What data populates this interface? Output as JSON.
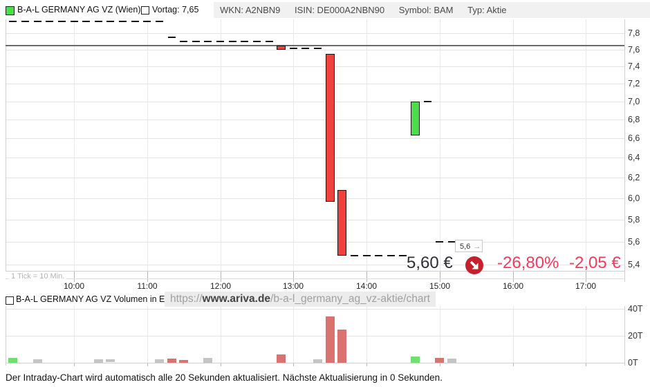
{
  "header": {
    "series_label": "B-A-L GERMANY AG VZ (Wien)",
    "vortag_label": "Vortag: 7,65",
    "meta": [
      "WKN: A2NBN9",
      "ISIN: DE000A2NBN90",
      "Symbol: BAM",
      "Typ: Aktie"
    ]
  },
  "price_panel": {
    "tick_note": "1 Tick = 10 Min.",
    "marker_label": "5,6",
    "marker_arrow": "→",
    "current_price": "5,60 €",
    "change_percent": "-26,80%",
    "change_absolute": "-2,05 €"
  },
  "volume_panel": {
    "legend": "B-A-L GERMANY AG VZ Volumen in Euro",
    "watermark_prefix": "https://",
    "watermark_domain": "www.ariva.de",
    "watermark_path": "/b-a-l_germany_ag_vz-aktie/chart"
  },
  "footer": {
    "status": "Der Intraday-Chart wird automatisch alle 20 Sekunden aktualisiert. Nächste Aktualisierung in 0 Sekunden."
  },
  "colors": {
    "candle_up": "#4ddd4a",
    "candle_down": "#ef413e",
    "candle_border": "#151515",
    "volume_up": "#6fdf6f",
    "volume_down": "#d9736f",
    "volume_neutral": "#c4c4c4",
    "change_text": "#f43b5b",
    "price_text": "#2f2f38",
    "trend_icon_bg": "#c6202c",
    "previous_close_line": "#6b6b6b",
    "grid": "#e4e4e4",
    "axis_border": "#cfcfcf"
  },
  "chart_data": [
    {
      "type": "candlestick",
      "title": "B-A-L GERMANY AG VZ (Wien) Intraday",
      "interval": "1 Tick = 10 Min.",
      "previous_close": 7.65,
      "last_price": 5.6,
      "change_percent": -26.8,
      "change_absolute": -2.05,
      "y_axis": {
        "scale": "log",
        "tick_labels": [
          "7,8",
          "7,6",
          "7,4",
          "7,2",
          "7,0",
          "6,8",
          "6,6",
          "6,4",
          "6,2",
          "6,0",
          "5,8",
          "5,6",
          "5,4"
        ],
        "tick_values": [
          7.8,
          7.6,
          7.4,
          7.2,
          7.0,
          6.8,
          6.6,
          6.4,
          6.2,
          6.0,
          5.8,
          5.6,
          5.4
        ]
      },
      "x_axis": {
        "tick_labels": [
          "10:00",
          "11:00",
          "12:00",
          "13:00",
          "14:00",
          "15:00",
          "16:00",
          "17:00"
        ]
      },
      "ticks": [
        {
          "t": "09:10",
          "o": 7.95,
          "c": 7.95
        },
        {
          "t": "09:20",
          "o": 7.95,
          "c": 7.95
        },
        {
          "t": "09:30",
          "o": 7.95,
          "c": 7.95
        },
        {
          "t": "09:40",
          "o": 7.95,
          "c": 7.95
        },
        {
          "t": "09:50",
          "o": 7.95,
          "c": 7.95
        },
        {
          "t": "10:00",
          "o": 7.95,
          "c": 7.95
        },
        {
          "t": "10:10",
          "o": 7.95,
          "c": 7.95
        },
        {
          "t": "10:20",
          "o": 7.95,
          "c": 7.95
        },
        {
          "t": "10:30",
          "o": 7.95,
          "c": 7.95
        },
        {
          "t": "10:40",
          "o": 7.95,
          "c": 7.95
        },
        {
          "t": "10:50",
          "o": 7.95,
          "c": 7.95
        },
        {
          "t": "11:00",
          "o": 7.95,
          "c": 7.95
        },
        {
          "t": "11:10",
          "o": 7.95,
          "c": 7.95
        },
        {
          "t": "11:20",
          "o": 7.75,
          "c": 7.75
        },
        {
          "t": "11:30",
          "o": 7.7,
          "c": 7.7
        },
        {
          "t": "11:40",
          "o": 7.7,
          "c": 7.7
        },
        {
          "t": "11:50",
          "o": 7.7,
          "c": 7.7
        },
        {
          "t": "12:00",
          "o": 7.7,
          "c": 7.7
        },
        {
          "t": "12:10",
          "o": 7.7,
          "c": 7.7
        },
        {
          "t": "12:20",
          "o": 7.7,
          "c": 7.7
        },
        {
          "t": "12:30",
          "o": 7.7,
          "c": 7.7
        },
        {
          "t": "12:40",
          "o": 7.7,
          "c": 7.7
        },
        {
          "t": "12:50",
          "o": 7.65,
          "c": 7.6
        },
        {
          "t": "13:00",
          "o": 7.61,
          "c": 7.61
        },
        {
          "t": "13:10",
          "o": 7.61,
          "c": 7.61
        },
        {
          "t": "13:20",
          "o": 7.61,
          "c": 7.61
        },
        {
          "t": "13:30",
          "o": 7.55,
          "c": 5.97
        },
        {
          "t": "13:40",
          "o": 6.08,
          "c": 5.48
        },
        {
          "t": "13:50",
          "o": 5.48,
          "c": 5.48
        },
        {
          "t": "14:00",
          "o": 5.48,
          "c": 5.48
        },
        {
          "t": "14:10",
          "o": 5.48,
          "c": 5.48
        },
        {
          "t": "14:20",
          "o": 5.48,
          "c": 5.48
        },
        {
          "t": "14:30",
          "o": 5.48,
          "c": 5.48
        },
        {
          "t": "14:40",
          "o": 6.63,
          "c": 7.0
        },
        {
          "t": "14:50",
          "o": 7.0,
          "c": 7.0
        },
        {
          "t": "15:00",
          "o": 5.6,
          "c": 5.6
        },
        {
          "t": "15:10",
          "o": 5.6,
          "c": 5.6
        }
      ]
    },
    {
      "type": "bar",
      "title": "B-A-L GERMANY AG VZ Volumen in Euro",
      "y_axis": {
        "tick_labels": [
          "40T",
          "20T",
          "0T"
        ],
        "tick_values": [
          40,
          20,
          0
        ],
        "unit": "T"
      },
      "bars": [
        {
          "t": "09:10",
          "v": 3.5,
          "dir": "up"
        },
        {
          "t": "09:30",
          "v": 2.5,
          "dir": "neutral"
        },
        {
          "t": "10:20",
          "v": 2.5,
          "dir": "neutral"
        },
        {
          "t": "10:30",
          "v": 2.2,
          "dir": "neutral"
        },
        {
          "t": "11:10",
          "v": 2.5,
          "dir": "neutral"
        },
        {
          "t": "11:20",
          "v": 3.0,
          "dir": "down"
        },
        {
          "t": "11:30",
          "v": 2.0,
          "dir": "down"
        },
        {
          "t": "11:50",
          "v": 3.5,
          "dir": "neutral"
        },
        {
          "t": "12:50",
          "v": 6.0,
          "dir": "down"
        },
        {
          "t": "13:20",
          "v": 2.5,
          "dir": "neutral"
        },
        {
          "t": "13:30",
          "v": 34.5,
          "dir": "down"
        },
        {
          "t": "13:40",
          "v": 24.5,
          "dir": "down"
        },
        {
          "t": "14:40",
          "v": 4.5,
          "dir": "up"
        },
        {
          "t": "15:00",
          "v": 3.5,
          "dir": "down"
        },
        {
          "t": "15:10",
          "v": 3.0,
          "dir": "neutral"
        }
      ]
    }
  ]
}
